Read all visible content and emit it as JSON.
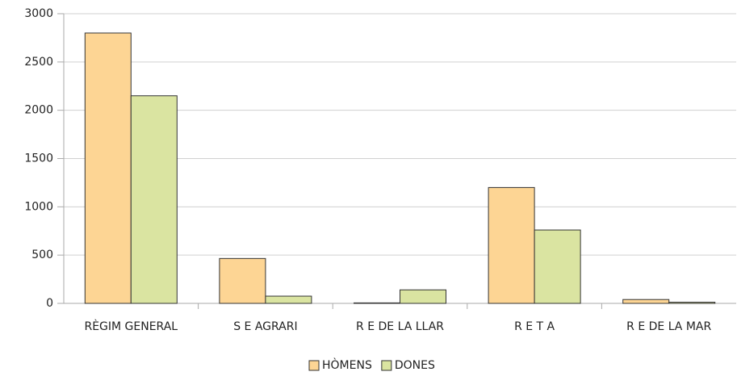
{
  "chart_data": {
    "type": "bar",
    "categories": [
      "RÈGIM GENERAL",
      "S E AGRARI",
      "R E DE LA LLAR",
      "R E T A",
      "R E DE LA MAR"
    ],
    "series": [
      {
        "name": "HÒMENS",
        "color": "#fdd594",
        "values": [
          2800,
          465,
          5,
          1200,
          40
        ]
      },
      {
        "name": "DONES",
        "color": "#dae4a1",
        "values": [
          2150,
          75,
          140,
          760,
          12
        ]
      }
    ],
    "ylim": [
      0,
      3000
    ],
    "yticks": [
      0,
      500,
      1000,
      1500,
      2000,
      2500,
      3000
    ],
    "grid": true,
    "legend": "bottom"
  }
}
